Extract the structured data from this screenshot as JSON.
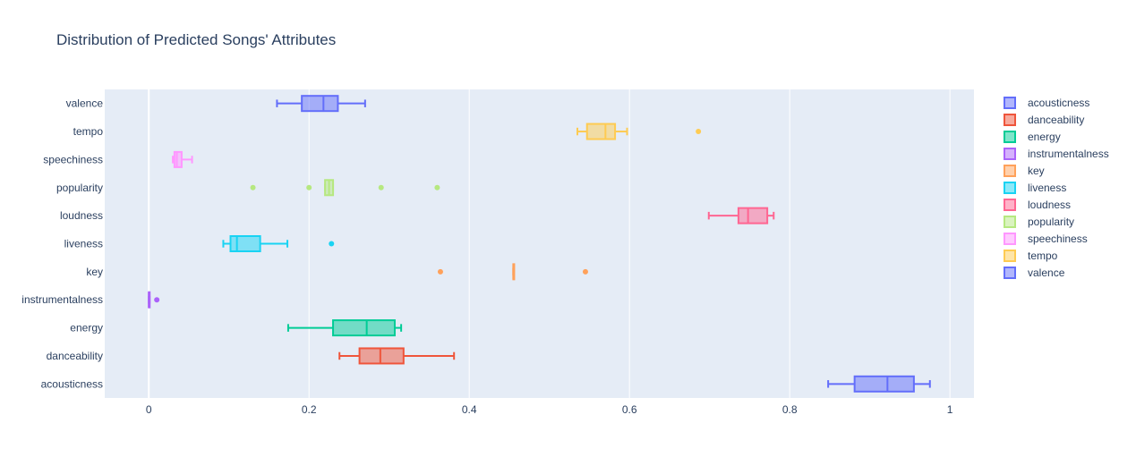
{
  "chart_data": {
    "type": "box",
    "orientation": "horizontal",
    "title": "Distribution of Predicted Songs' Attributes",
    "xlim": [
      -0.055,
      1.03
    ],
    "x_ticks": [
      0,
      0.2,
      0.4,
      0.6,
      0.8,
      1
    ],
    "x_tick_labels": [
      "0",
      "0.2",
      "0.4",
      "0.6",
      "0.8",
      "1"
    ],
    "grid": true,
    "legend_position": "right",
    "series": [
      {
        "name": "acousticness",
        "color": "#636efa",
        "min": 0.848,
        "q1": 0.881,
        "median": 0.922,
        "q3": 0.955,
        "max": 0.975,
        "outliers": []
      },
      {
        "name": "danceability",
        "color": "#ef553b",
        "min": 0.238,
        "q1": 0.263,
        "median": 0.289,
        "q3": 0.318,
        "max": 0.381,
        "outliers": []
      },
      {
        "name": "energy",
        "color": "#00cc96",
        "min": 0.174,
        "q1": 0.23,
        "median": 0.272,
        "q3": 0.307,
        "max": 0.315,
        "outliers": []
      },
      {
        "name": "instrumentalness",
        "color": "#ab63fa",
        "min": 0.0,
        "q1": 0.0,
        "median": 0.0,
        "q3": 0.001,
        "max": 0.001,
        "outliers": [
          0.01
        ]
      },
      {
        "name": "key",
        "color": "#ffa15a",
        "min": 0.455,
        "q1": 0.455,
        "median": 0.455,
        "q3": 0.455,
        "max": 0.455,
        "outliers": [
          0.364,
          0.545
        ]
      },
      {
        "name": "liveness",
        "color": "#19d3f3",
        "min": 0.093,
        "q1": 0.102,
        "median": 0.11,
        "q3": 0.139,
        "max": 0.173,
        "outliers": [
          0.228
        ]
      },
      {
        "name": "loudness",
        "color": "#ff6692",
        "min": 0.699,
        "q1": 0.736,
        "median": 0.748,
        "q3": 0.772,
        "max": 0.78,
        "outliers": []
      },
      {
        "name": "popularity",
        "color": "#b6e880",
        "min": 0.22,
        "q1": 0.22,
        "median": 0.225,
        "q3": 0.23,
        "max": 0.23,
        "outliers": [
          0.13,
          0.2,
          0.29,
          0.36
        ]
      },
      {
        "name": "speechiness",
        "color": "#ff97ff",
        "min": 0.03,
        "q1": 0.032,
        "median": 0.035,
        "q3": 0.041,
        "max": 0.054,
        "outliers": []
      },
      {
        "name": "tempo",
        "color": "#fecb52",
        "min": 0.535,
        "q1": 0.547,
        "median": 0.57,
        "q3": 0.582,
        "max": 0.597,
        "outliers": [
          0.686
        ]
      },
      {
        "name": "valence",
        "color": "#636efa",
        "min": 0.16,
        "q1": 0.191,
        "median": 0.218,
        "q3": 0.236,
        "max": 0.27,
        "outliers": []
      }
    ]
  }
}
